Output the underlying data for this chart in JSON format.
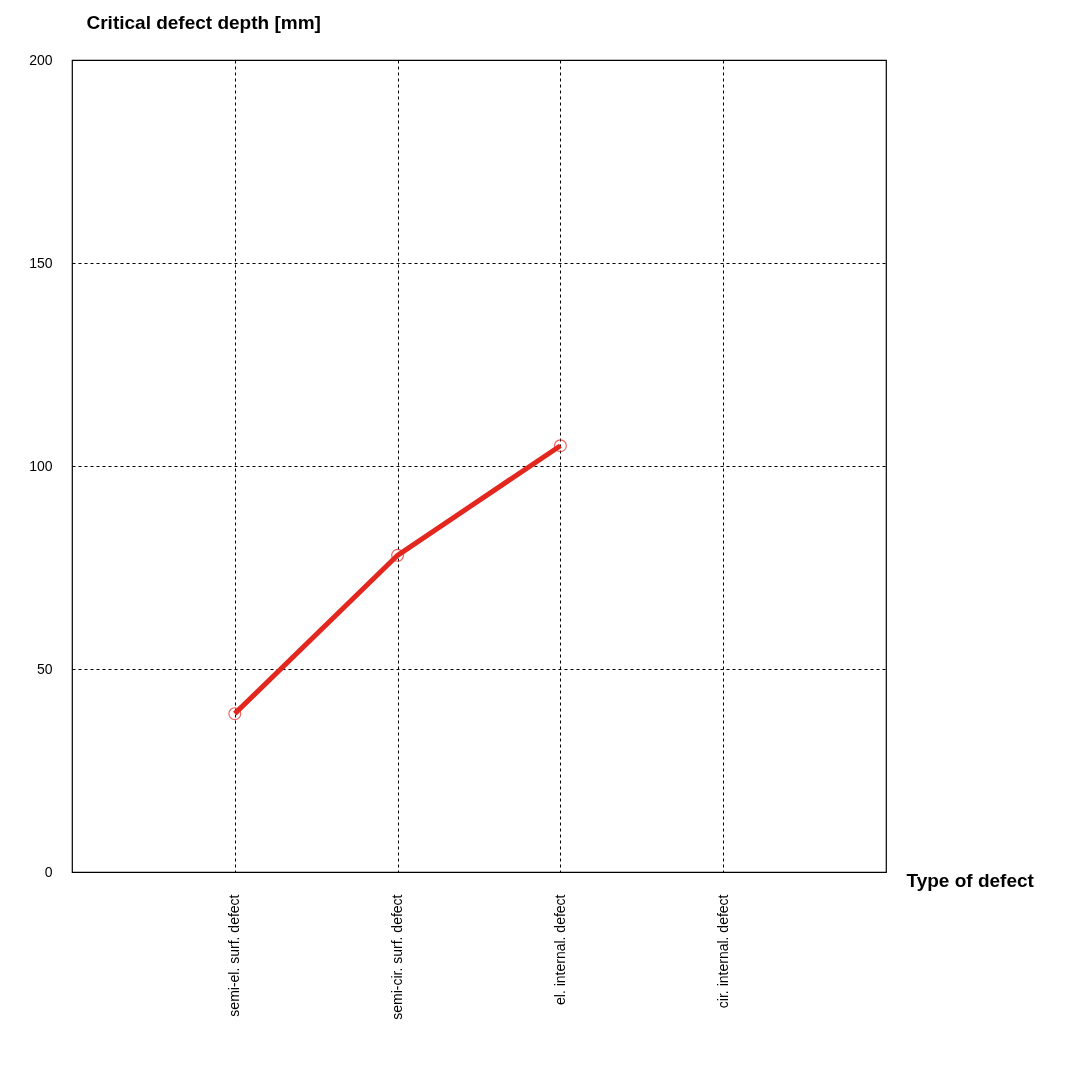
{
  "chart_data": {
    "type": "line",
    "xlabel": "Type of defect",
    "ylabel": "Critical defect depth [mm]",
    "categories": [
      "semi-el. surf. defect",
      "semi-cir. surf. defect",
      "el. internal. defect",
      "cir. internal. defect"
    ],
    "series": [
      {
        "color": "#e3261e",
        "values": [
          39,
          78,
          105,
          null
        ]
      }
    ],
    "ylim": [
      0,
      200
    ],
    "yticks": [
      0,
      50,
      100,
      150,
      200
    ],
    "grid": true,
    "marker": "circle",
    "line_style": "solid"
  }
}
